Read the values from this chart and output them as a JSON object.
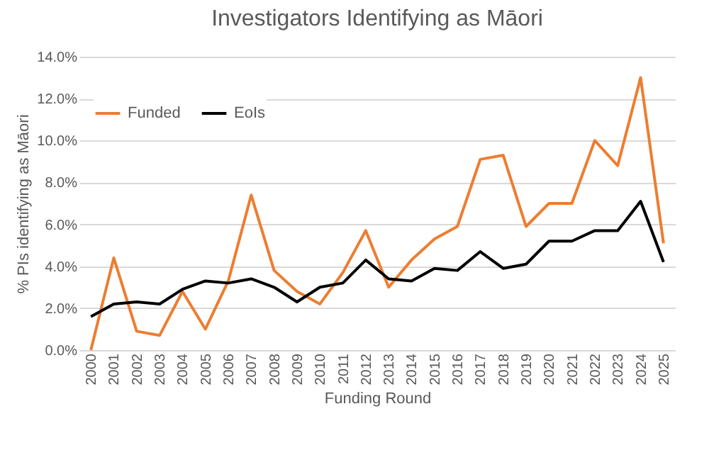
{
  "chart_data": {
    "type": "line",
    "title": "Investigators Identifying as Māori",
    "xlabel": "Funding Round",
    "ylabel": "%  PIs identifying as Māori",
    "categories": [
      "2000",
      "2001",
      "2002",
      "2003",
      "2004",
      "2005",
      "2006",
      "2007",
      "2008",
      "2009",
      "2010",
      "2011",
      "2012",
      "2013",
      "2014",
      "2015",
      "2016",
      "2017",
      "2018",
      "2019",
      "2020",
      "2021",
      "2022",
      "2023",
      "2024",
      "2025"
    ],
    "series": [
      {
        "name": "Funded",
        "color": "#ed7d31",
        "values": [
          0,
          4.4,
          0.9,
          0.7,
          2.8,
          1.0,
          3.3,
          7.4,
          3.8,
          2.8,
          2.2,
          3.7,
          5.7,
          3.0,
          4.3,
          5.3,
          5.9,
          9.1,
          9.3,
          5.9,
          7.0,
          7.0,
          10.0,
          8.8,
          13.0,
          5.1
        ]
      },
      {
        "name": "EoIs",
        "color": "#000000",
        "values": [
          1.6,
          2.2,
          2.3,
          2.2,
          2.9,
          3.3,
          3.2,
          3.4,
          3.0,
          2.3,
          3.0,
          3.2,
          4.3,
          3.4,
          3.3,
          3.9,
          3.8,
          4.7,
          3.9,
          4.1,
          5.2,
          5.2,
          5.7,
          5.7,
          7.1,
          4.2
        ]
      }
    ],
    "ylim": [
      0,
      14
    ],
    "yticks": [
      {
        "value": 0,
        "label": "0.0%"
      },
      {
        "value": 2,
        "label": "2.0%"
      },
      {
        "value": 4,
        "label": "4.0%"
      },
      {
        "value": 6,
        "label": "6.0%"
      },
      {
        "value": 8,
        "label": "8.0%"
      },
      {
        "value": 10,
        "label": "10.0%"
      },
      {
        "value": 12,
        "label": "12.0%"
      },
      {
        "value": 14,
        "label": "14.0%"
      }
    ],
    "grid": "y",
    "legend": "top left",
    "marker": "none",
    "line_style": "solid"
  }
}
